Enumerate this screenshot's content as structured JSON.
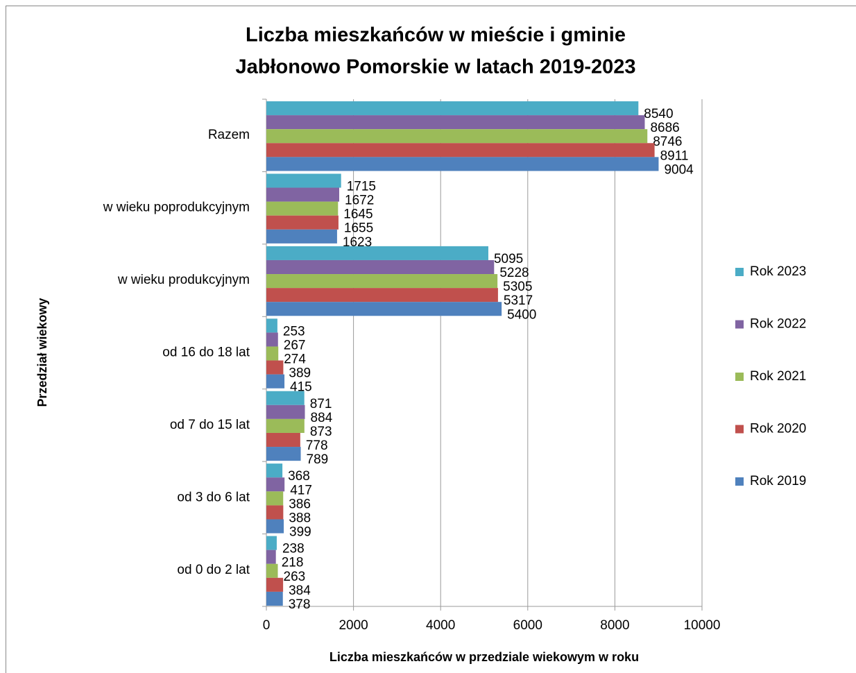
{
  "chart_data": {
    "type": "bar",
    "orientation": "horizontal",
    "title": [
      "Liczba mieszkańców  w mieście i gminie",
      "Jabłonowo Pomorskie w latach 2019-2023"
    ],
    "x_label": "Liczba mieszkańców w przedziale wiekowym w roku",
    "y_label": "Przedział wiekowy",
    "categories": [
      "Razem",
      "w wieku poprodukcyjnym",
      "w wieku produkcyjnym",
      "od 16 do 18 lat",
      "od 7 do 15 lat",
      "od 3 do 6 lat",
      "od 0 do 2 lat"
    ],
    "series": [
      {
        "name": "Rok 2023",
        "color": "#4bacc6",
        "values": [
          8540,
          1715,
          5095,
          253,
          871,
          368,
          238
        ]
      },
      {
        "name": "Rok 2022",
        "color": "#8064a2",
        "values": [
          8686,
          1672,
          5228,
          267,
          884,
          417,
          218
        ]
      },
      {
        "name": "Rok 2021",
        "color": "#9bbb59",
        "values": [
          8746,
          1645,
          5305,
          274,
          873,
          386,
          263
        ]
      },
      {
        "name": "Rok 2020",
        "color": "#c0504d",
        "values": [
          8911,
          1655,
          5317,
          389,
          778,
          388,
          384
        ]
      },
      {
        "name": "Rok 2019",
        "color": "#4f81bd",
        "values": [
          9004,
          1623,
          5400,
          415,
          789,
          399,
          378
        ]
      }
    ],
    "xlim": [
      0,
      10000
    ],
    "xticks": [
      0,
      2000,
      4000,
      6000,
      8000,
      10000
    ],
    "grid": true,
    "legend": "right"
  }
}
